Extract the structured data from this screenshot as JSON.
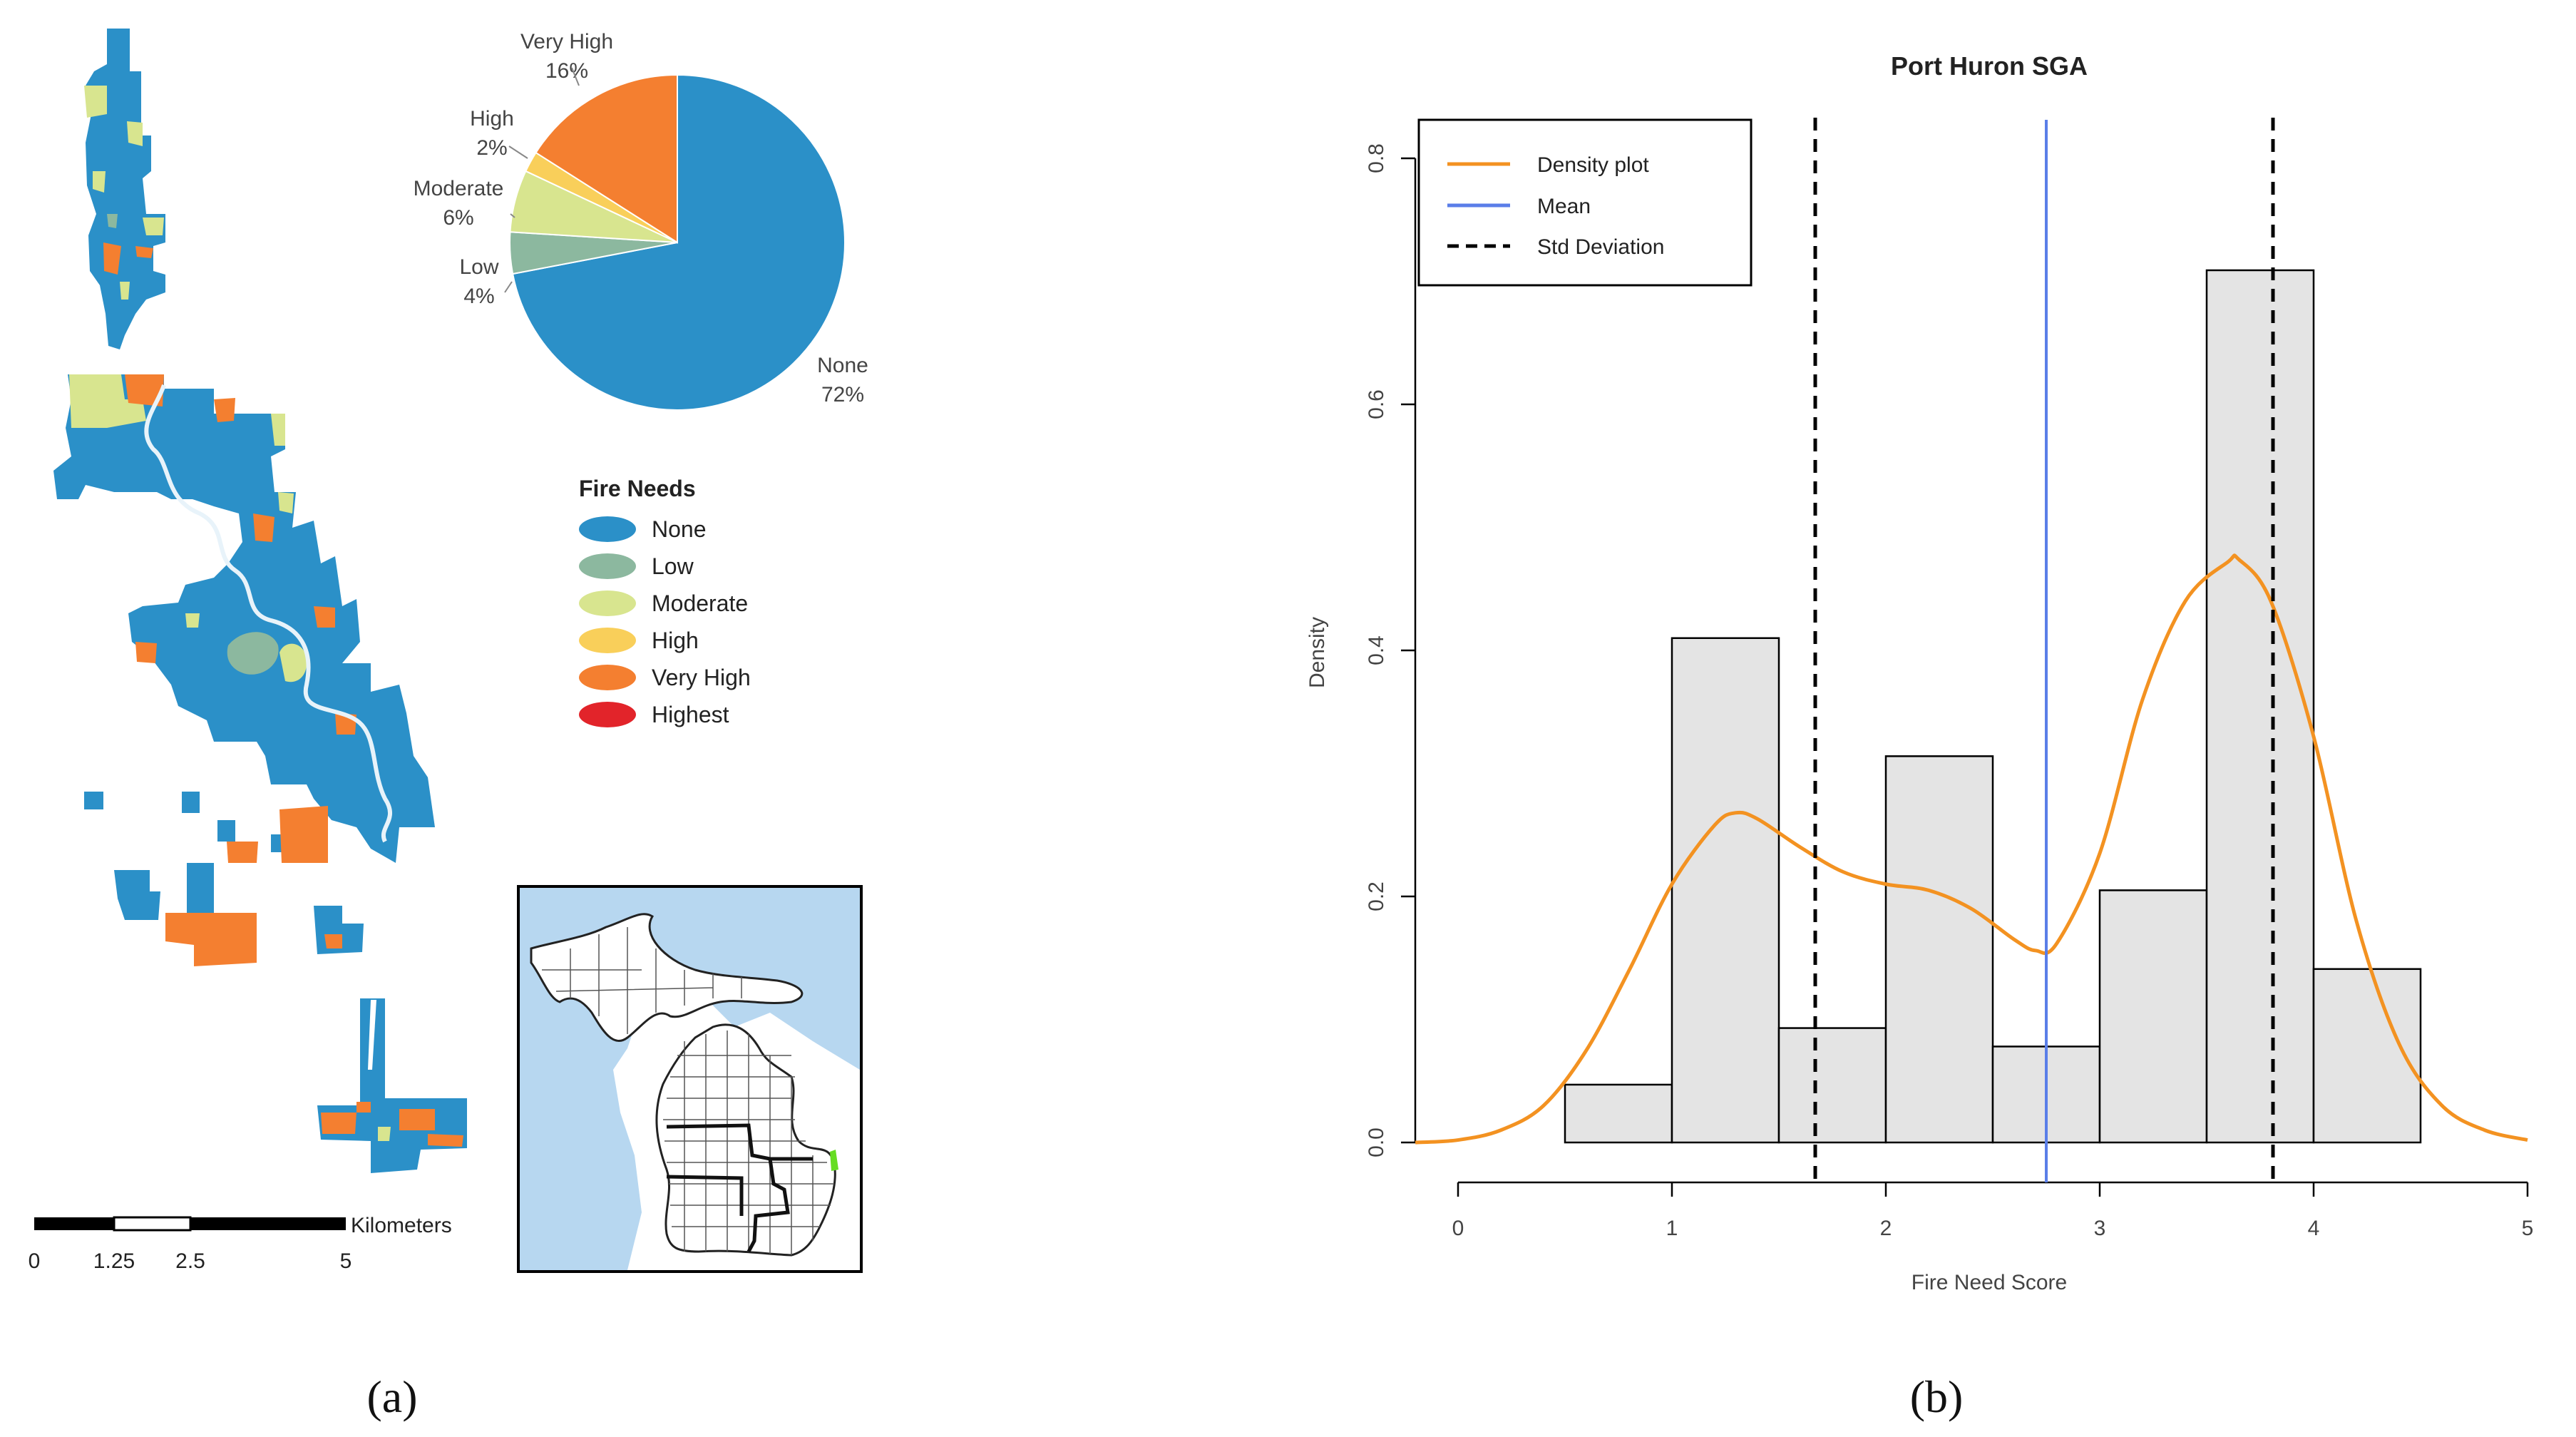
{
  "panel_a": {
    "label": "(a)",
    "pie_labels": [
      {
        "name": "Very High",
        "pct": "16%"
      },
      {
        "name": "High",
        "pct": "2%"
      },
      {
        "name": "Moderate",
        "pct": "6%"
      },
      {
        "name": "Low",
        "pct": "4%"
      },
      {
        "name": "None",
        "pct": "72%"
      }
    ],
    "legend": {
      "title": "Fire Needs",
      "items": [
        {
          "label": "None",
          "color": "#2b90c8"
        },
        {
          "label": "Low",
          "color": "#8cb89f"
        },
        {
          "label": "Moderate",
          "color": "#d8e58f"
        },
        {
          "label": "High",
          "color": "#f9cf5a"
        },
        {
          "label": "Very High",
          "color": "#f47f30"
        },
        {
          "label": "Highest",
          "color": "#e2242a"
        }
      ]
    },
    "scale_bar": {
      "unit": "Kilometers",
      "ticks": [
        "0",
        "1.25",
        "2.5",
        "5"
      ]
    }
  },
  "panel_b": {
    "label": "(b)"
  },
  "chart_data": [
    {
      "type": "pie",
      "title": "Fire Needs",
      "categories": [
        "None",
        "Low",
        "Moderate",
        "High",
        "Very High"
      ],
      "values": [
        72,
        4,
        6,
        2,
        16
      ],
      "colors": [
        "#2b90c8",
        "#8cb89f",
        "#d8e58f",
        "#f9cf5a",
        "#f47f30"
      ]
    },
    {
      "type": "bar",
      "subtype": "histogram-with-density",
      "title": "Port Huron SGA",
      "xlabel": "Fire Need Score",
      "ylabel": "Density",
      "xlim": [
        0,
        5
      ],
      "ylim": [
        0,
        0.8
      ],
      "xticks": [
        "0",
        "1",
        "2",
        "3",
        "4",
        "5"
      ],
      "yticks": [
        "0.0",
        "0.2",
        "0.4",
        "0.6",
        "0.8"
      ],
      "bins": [
        {
          "x0": 0.5,
          "x1": 1.0,
          "density": 0.047
        },
        {
          "x0": 1.0,
          "x1": 1.5,
          "density": 0.41
        },
        {
          "x0": 1.5,
          "x1": 2.0,
          "density": 0.093
        },
        {
          "x0": 2.0,
          "x1": 2.5,
          "density": 0.314
        },
        {
          "x0": 2.5,
          "x1": 3.0,
          "density": 0.078
        },
        {
          "x0": 3.0,
          "x1": 3.5,
          "density": 0.205
        },
        {
          "x0": 3.5,
          "x1": 4.0,
          "density": 0.709
        },
        {
          "x0": 4.0,
          "x1": 4.5,
          "density": 0.141
        }
      ],
      "density_curve": {
        "x": [
          -0.2,
          0.0,
          0.2,
          0.4,
          0.6,
          0.8,
          1.0,
          1.2,
          1.3,
          1.4,
          1.6,
          1.8,
          2.0,
          2.2,
          2.4,
          2.6,
          2.7,
          2.8,
          3.0,
          3.2,
          3.4,
          3.6,
          3.65,
          3.8,
          4.0,
          4.2,
          4.4,
          4.6,
          4.8,
          5.0
        ],
        "y": [
          0.0,
          0.002,
          0.01,
          0.03,
          0.075,
          0.14,
          0.21,
          0.258,
          0.268,
          0.263,
          0.24,
          0.22,
          0.21,
          0.205,
          0.19,
          0.165,
          0.156,
          0.162,
          0.235,
          0.36,
          0.44,
          0.472,
          0.474,
          0.44,
          0.33,
          0.18,
          0.08,
          0.03,
          0.01,
          0.002
        ]
      },
      "mean": 2.75,
      "std_lines": [
        1.67,
        3.81
      ],
      "legend": {
        "placement": "top-left",
        "entries": [
          {
            "label": "Density plot",
            "color": "#f39221",
            "style": "solid"
          },
          {
            "label": "Mean",
            "color": "#5a7ee8",
            "style": "solid"
          },
          {
            "label": "Std Deviation",
            "color": "#000000",
            "style": "dashed"
          }
        ]
      }
    }
  ]
}
